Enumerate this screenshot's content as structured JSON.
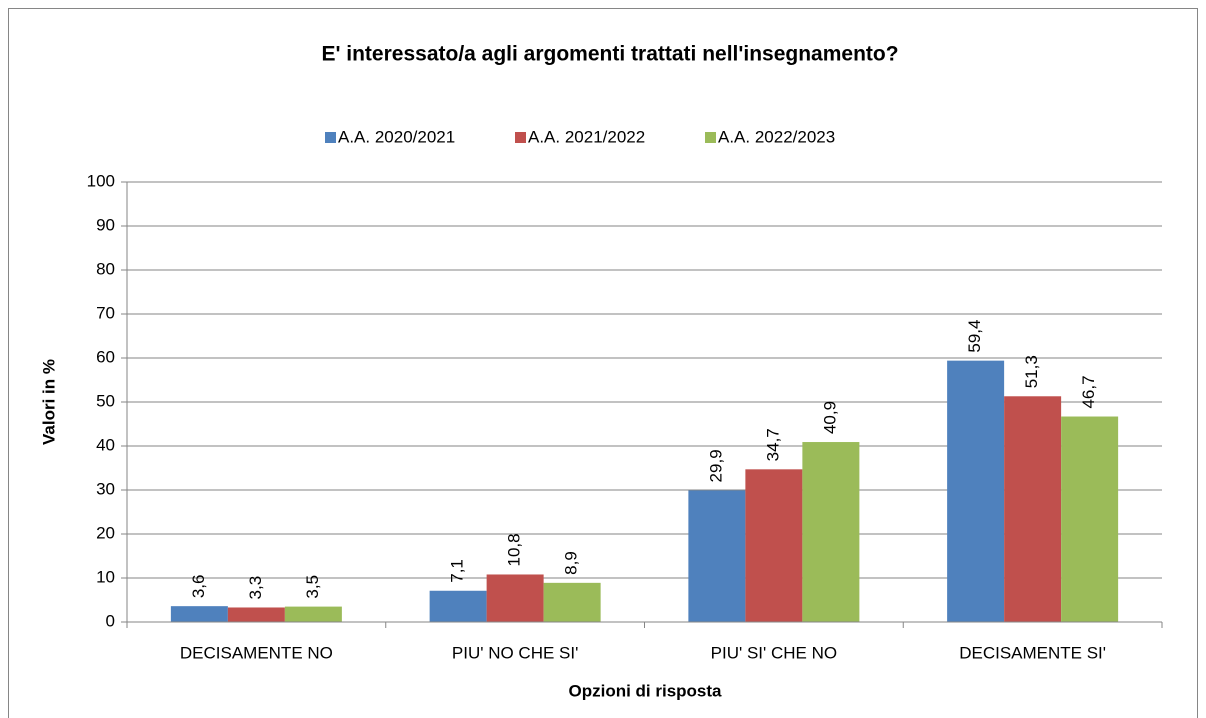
{
  "chart_data": {
    "type": "bar",
    "title": "E' interessato/a agli argomenti trattati nell'insegnamento?",
    "xlabel": "Opzioni di risposta",
    "ylabel": "Valori in %",
    "categories": [
      "DECISAMENTE NO",
      "PIU' NO CHE SI'",
      "PIU' SI' CHE NO",
      "DECISAMENTE SI'"
    ],
    "series": [
      {
        "name": "A.A. 2020/2021",
        "color": "#4f81bd",
        "values": [
          3.6,
          7.1,
          29.9,
          59.4
        ],
        "value_labels": [
          "3,6",
          "7,1",
          "29,9",
          "59,4"
        ]
      },
      {
        "name": "A.A. 2021/2022",
        "color": "#c0504d",
        "values": [
          3.3,
          10.8,
          34.7,
          51.3
        ],
        "value_labels": [
          "3,3",
          "10,8",
          "34,7",
          "51,3"
        ]
      },
      {
        "name": "A.A. 2022/2023",
        "color": "#9bbb59",
        "values": [
          3.5,
          8.9,
          40.9,
          46.7
        ],
        "value_labels": [
          "3,5",
          "8,9",
          "40,9",
          "46,7"
        ]
      }
    ],
    "ylim": [
      0,
      100
    ],
    "yticks": [
      0,
      10,
      20,
      30,
      40,
      50,
      60,
      70,
      80,
      90,
      100
    ],
    "grid": true,
    "legend": "top"
  }
}
